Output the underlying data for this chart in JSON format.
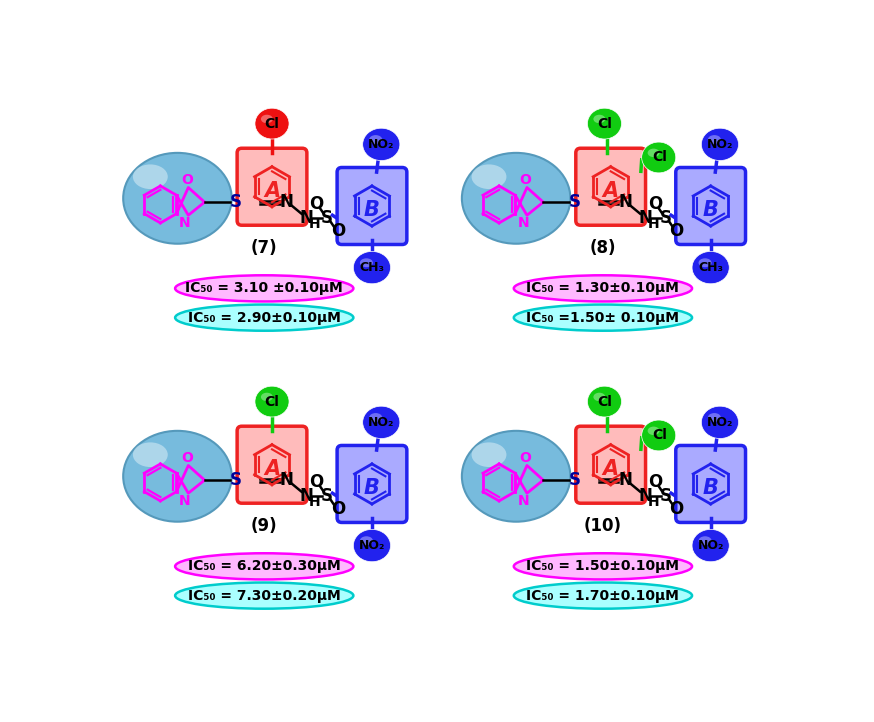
{
  "compounds": [
    {
      "number": "7",
      "cl_color": "#EE1111",
      "cl_count": 1,
      "b_substituent": "CH₃",
      "ic50_pink": "IC₅₀ = 3.10 ±0.10μM",
      "ic50_cyan": "IC₅₀ = 2.90±0.10μM"
    },
    {
      "number": "8",
      "cl_color": "#11CC11",
      "cl_count": 2,
      "b_substituent": "CH₃",
      "ic50_pink": "IC₅₀ = 1.30±0.10μM",
      "ic50_cyan": "IC₅₀ =1.50± 0.10μM"
    },
    {
      "number": "9",
      "cl_color": "#11CC11",
      "cl_count": 1,
      "b_substituent": "NO₂",
      "ic50_pink": "IC₅₀ = 6.20±0.30μM",
      "ic50_cyan": "IC₅₀ = 7.30±0.20μM"
    },
    {
      "number": "10",
      "cl_color": "#11CC11",
      "cl_count": 2,
      "b_substituent": "NO₂",
      "ic50_pink": "IC₅₀ = 1.50±0.10μM",
      "ic50_cyan": "IC₅₀ = 1.70±0.10μM"
    }
  ],
  "pink_fc": "#FFB8FF",
  "pink_ec": "#FF00FF",
  "cyan_fc": "#AAFFFF",
  "cyan_ec": "#00CCCC",
  "red_color": "#EE2222",
  "red_fc": "#FFBBBB",
  "blue_color": "#2222EE",
  "blue_fc": "#AAAAFF",
  "green_color": "#11BB11",
  "magenta_color": "#FF00FF",
  "sky_blue_fc": "#77BBDD",
  "sky_blue_ec": "#5599BB",
  "background": "#FFFFFF"
}
